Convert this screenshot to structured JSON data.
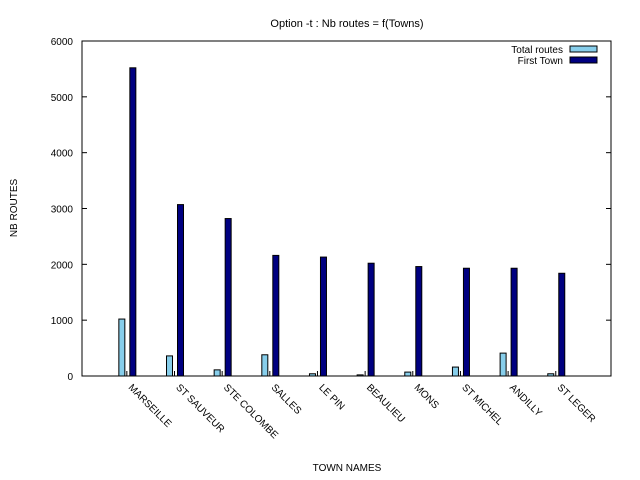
{
  "chart_data": {
    "type": "bar",
    "title": "Option -t : Nb routes = f(Towns)",
    "xlabel": "TOWN NAMES",
    "ylabel": "NB ROUTES",
    "ylim": [
      0,
      6000
    ],
    "yticks": [
      0,
      1000,
      2000,
      3000,
      4000,
      5000,
      6000
    ],
    "grid": false,
    "legend_position": "top-right",
    "categories": [
      "MARSEILLE",
      "ST SAUVEUR",
      "STE COLOMBE",
      "SALLES",
      "LE PIN",
      "BEAULIEU",
      "MONS",
      "ST MICHEL",
      "ANDILLY",
      "ST LEGER"
    ],
    "series": [
      {
        "name": "Total routes",
        "color": "#87ceeb",
        "values": [
          1020,
          360,
          110,
          380,
          40,
          20,
          70,
          160,
          410,
          40
        ]
      },
      {
        "name": "First Town",
        "color": "#000080",
        "values": [
          5520,
          3070,
          2820,
          2160,
          2130,
          2020,
          1960,
          1930,
          1930,
          1840
        ]
      }
    ]
  }
}
